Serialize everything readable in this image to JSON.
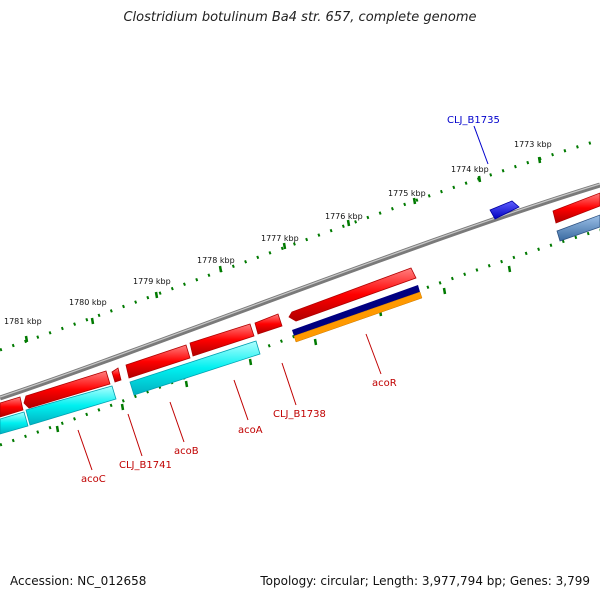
{
  "title": "Clostridium botulinum Ba4 str. 657, complete genome",
  "footer": {
    "accession": "Accession: NC_012658",
    "summary": "Topology: circular; Length: 3,977,794 bp; Genes: 3,799"
  },
  "ruler": {
    "labels": [
      "1773 kbp",
      "1774 kbp",
      "1775 kbp",
      "1776 kbp",
      "1777 kbp",
      "1778 kbp",
      "1779 kbp",
      "1780 kbp",
      "1781 kbp"
    ]
  },
  "genes": {
    "CLJ_B1735": "CLJ_B1735",
    "acoR": "acoR",
    "CLJ_B1738": "CLJ_B1738",
    "acoA": "acoA",
    "acoB": "acoB",
    "CLJ_B1741": "CLJ_B1741",
    "acoC": "acoC"
  },
  "colors": {
    "forward_cds": "#ff0000",
    "reverse_cds": "#0000ff",
    "gene_bar_cyan": "#00ffff",
    "gene_bar_steel": "#4f81bd",
    "navy": "#000080",
    "orange": "#ff9900",
    "backbone": "#808080",
    "ruler": "#007a00",
    "label_red": "#c00000",
    "label_blue": "#0000cc"
  }
}
